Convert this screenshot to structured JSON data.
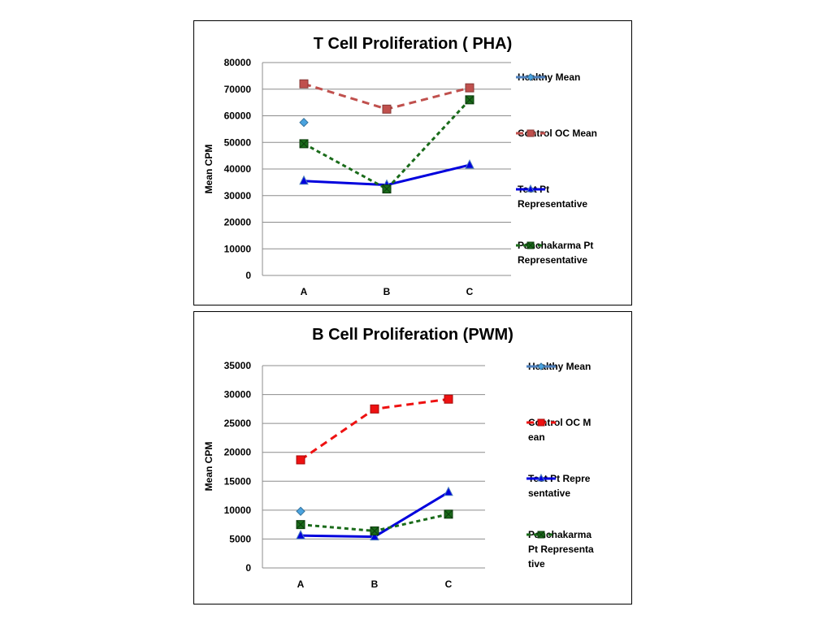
{
  "chart_data": [
    {
      "type": "line",
      "title": "T Cell Proliferation ( PHA)",
      "xlabel": "",
      "ylabel": "Mean CPM",
      "categories": [
        "A",
        "B",
        "C"
      ],
      "ylim": [
        0,
        80000
      ],
      "yticks": [
        "0",
        "10000",
        "20000",
        "30000",
        "40000",
        "50000",
        "60000",
        "70000",
        "80000"
      ],
      "grid": true,
      "legend_position": "right",
      "series": [
        {
          "name": "Healthy Mean",
          "values": [
            57500,
            null,
            null
          ],
          "color": "#4aa3df",
          "marker": "diamond",
          "line": "solid"
        },
        {
          "name": "Control OC Mean",
          "values": [
            72000,
            62500,
            70500
          ],
          "color": "#c0504d",
          "marker": "square",
          "line": "dashed"
        },
        {
          "name": "Test Pt Representative",
          "values": [
            35500,
            34000,
            41500
          ],
          "color": "#0000dd",
          "marker": "triangle",
          "line": "solid"
        },
        {
          "name": "Panchakarma Pt Representative",
          "values": [
            49500,
            32500,
            66000
          ],
          "color": "#1a6b1a",
          "marker": "xsquare",
          "line": "dotted"
        }
      ]
    },
    {
      "type": "line",
      "title": "B Cell Proliferation (PWM)",
      "xlabel": "",
      "ylabel": "Mean CPM",
      "categories": [
        "A",
        "B",
        "C"
      ],
      "ylim": [
        0,
        35000
      ],
      "yticks": [
        "0",
        "5000",
        "10000",
        "15000",
        "20000",
        "25000",
        "30000",
        "35000"
      ],
      "grid": true,
      "legend_position": "right",
      "series": [
        {
          "name": "Healthy Mean",
          "values": [
            9800,
            null,
            null
          ],
          "color": "#4aa3df",
          "marker": "diamond",
          "line": "solid"
        },
        {
          "name": "Control OC Mean",
          "values": [
            18700,
            27500,
            29200
          ],
          "color": "#ee1111",
          "marker": "square",
          "line": "dashed"
        },
        {
          "name": "Test Pt Representative",
          "values": [
            5600,
            5400,
            13100
          ],
          "color": "#0000dd",
          "marker": "triangle",
          "line": "solid"
        },
        {
          "name": "Panchakarma Pt Representative",
          "values": [
            7500,
            6400,
            9300
          ],
          "color": "#1a6b1a",
          "marker": "xsquare",
          "line": "dotted"
        }
      ]
    }
  ]
}
